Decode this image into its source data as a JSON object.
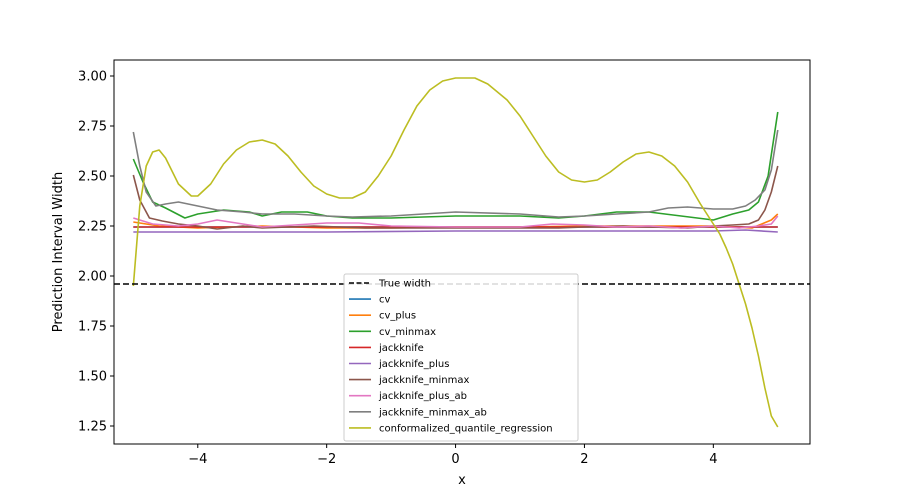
{
  "chart_data": {
    "type": "line",
    "xlabel": "x",
    "ylabel": "Prediction Interval Width",
    "xlim": [
      -5.3,
      5.5
    ],
    "ylim": [
      1.16,
      3.08
    ],
    "x_ticks": [
      -4,
      -2,
      0,
      2,
      4
    ],
    "x_tick_labels": [
      "−4",
      "−2",
      "0",
      "2",
      "4"
    ],
    "y_ticks": [
      1.25,
      1.5,
      1.75,
      2.0,
      2.25,
      2.5,
      2.75,
      3.0
    ],
    "y_tick_labels": [
      "1.25",
      "1.50",
      "1.75",
      "2.00",
      "2.25",
      "2.50",
      "2.75",
      "3.00"
    ],
    "legend_position": "lower-center",
    "reference_line": {
      "name": "True width",
      "y": 1.96,
      "color": "#000000",
      "style": "dashed"
    },
    "series": [
      {
        "name": "cv",
        "color": "#1f77b4",
        "x": [
          -5,
          5
        ],
        "y": [
          2.245,
          2.245
        ]
      },
      {
        "name": "cv_plus",
        "color": "#ff7f0e",
        "x": [
          -5,
          -4.6,
          -4,
          -3,
          -2,
          -1,
          0,
          1,
          2,
          3,
          4,
          4.6,
          4.9,
          5
        ],
        "y": [
          2.27,
          2.25,
          2.24,
          2.25,
          2.24,
          2.24,
          2.245,
          2.245,
          2.25,
          2.25,
          2.25,
          2.24,
          2.28,
          2.31
        ]
      },
      {
        "name": "cv_minmax",
        "color": "#2ca02c",
        "x": [
          -5,
          -4.85,
          -4.7,
          -4.5,
          -4.2,
          -4.0,
          -3.6,
          -3.2,
          -3.0,
          -2.7,
          -2.3,
          -2.0,
          -1.6,
          -1.0,
          0,
          1.0,
          1.6,
          2.0,
          2.5,
          3.0,
          3.5,
          4.0,
          4.3,
          4.55,
          4.7,
          4.85,
          5.0
        ],
        "y": [
          2.585,
          2.47,
          2.37,
          2.34,
          2.29,
          2.31,
          2.33,
          2.32,
          2.3,
          2.32,
          2.32,
          2.3,
          2.29,
          2.29,
          2.3,
          2.3,
          2.29,
          2.3,
          2.32,
          2.32,
          2.3,
          2.28,
          2.31,
          2.33,
          2.37,
          2.5,
          2.82
        ]
      },
      {
        "name": "jackknife",
        "color": "#d62728",
        "x": [
          -5,
          5
        ],
        "y": [
          2.245,
          2.245
        ]
      },
      {
        "name": "jackknife_plus",
        "color": "#9467bd",
        "x": [
          -5,
          -4,
          -2,
          0,
          2,
          4,
          4.5,
          5
        ],
        "y": [
          2.22,
          2.22,
          2.22,
          2.225,
          2.225,
          2.225,
          2.23,
          2.22
        ]
      },
      {
        "name": "jackknife_minmax",
        "color": "#8c564b",
        "x": [
          -5,
          -4.9,
          -4.75,
          -4.55,
          -4.3,
          -4.0,
          -3.7,
          -3.3,
          -3.0,
          -2.6,
          -2.2,
          -1.8,
          -1.4,
          -1.0,
          0,
          1.0,
          1.6,
          2.0,
          2.6,
          3.0,
          3.6,
          4.0,
          4.3,
          4.55,
          4.7,
          4.8,
          4.9,
          5.0
        ],
        "y": [
          2.505,
          2.38,
          2.29,
          2.275,
          2.26,
          2.25,
          2.235,
          2.25,
          2.24,
          2.245,
          2.25,
          2.245,
          2.24,
          2.24,
          2.24,
          2.24,
          2.24,
          2.245,
          2.25,
          2.245,
          2.24,
          2.25,
          2.255,
          2.26,
          2.28,
          2.33,
          2.42,
          2.55
        ]
      },
      {
        "name": "jackknife_plus_ab",
        "color": "#e377c2",
        "x": [
          -5,
          -4.7,
          -4.3,
          -4.0,
          -3.7,
          -3.3,
          -3.0,
          -2.5,
          -2.0,
          -1.5,
          -1.0,
          0,
          1.0,
          1.5,
          2.0,
          2.5,
          3.0,
          3.5,
          4.0,
          4.4,
          4.7,
          4.9,
          5.0
        ],
        "y": [
          2.29,
          2.26,
          2.25,
          2.26,
          2.28,
          2.26,
          2.245,
          2.255,
          2.265,
          2.265,
          2.25,
          2.245,
          2.245,
          2.26,
          2.255,
          2.245,
          2.25,
          2.24,
          2.25,
          2.24,
          2.25,
          2.26,
          2.3
        ]
      },
      {
        "name": "jackknife_minmax_ab",
        "color": "#7f7f7f",
        "x": [
          -5,
          -4.9,
          -4.8,
          -4.65,
          -4.5,
          -4.3,
          -4.0,
          -3.7,
          -3.3,
          -3.0,
          -2.5,
          -2.0,
          -1.6,
          -1.0,
          0,
          1.0,
          1.6,
          2.0,
          2.5,
          3.0,
          3.3,
          3.6,
          4.0,
          4.3,
          4.5,
          4.65,
          4.8,
          4.9,
          5.0
        ],
        "y": [
          2.72,
          2.55,
          2.42,
          2.35,
          2.36,
          2.37,
          2.35,
          2.33,
          2.32,
          2.31,
          2.31,
          2.3,
          2.295,
          2.3,
          2.32,
          2.31,
          2.295,
          2.3,
          2.31,
          2.32,
          2.34,
          2.345,
          2.335,
          2.335,
          2.35,
          2.38,
          2.43,
          2.53,
          2.73
        ]
      },
      {
        "name": "conformalized_quantile_regression",
        "color": "#bcbd22",
        "x": [
          -5.0,
          -4.9,
          -4.8,
          -4.7,
          -4.6,
          -4.5,
          -4.3,
          -4.1,
          -4.0,
          -3.8,
          -3.6,
          -3.4,
          -3.2,
          -3.0,
          -2.8,
          -2.6,
          -2.4,
          -2.2,
          -2.0,
          -1.8,
          -1.6,
          -1.4,
          -1.2,
          -1.0,
          -0.8,
          -0.6,
          -0.4,
          -0.2,
          0.0,
          0.2,
          0.3,
          0.5,
          0.8,
          1.0,
          1.2,
          1.4,
          1.6,
          1.8,
          2.0,
          2.2,
          2.4,
          2.6,
          2.8,
          3.0,
          3.2,
          3.4,
          3.6,
          3.8,
          4.0,
          4.1,
          4.2,
          4.3,
          4.4,
          4.5,
          4.6,
          4.7,
          4.8,
          4.9,
          5.0
        ],
        "y": [
          1.95,
          2.35,
          2.55,
          2.62,
          2.63,
          2.59,
          2.46,
          2.4,
          2.4,
          2.46,
          2.56,
          2.63,
          2.67,
          2.68,
          2.66,
          2.6,
          2.52,
          2.45,
          2.41,
          2.39,
          2.39,
          2.42,
          2.5,
          2.6,
          2.73,
          2.85,
          2.93,
          2.975,
          2.99,
          2.99,
          2.99,
          2.96,
          2.88,
          2.8,
          2.7,
          2.6,
          2.52,
          2.48,
          2.47,
          2.48,
          2.52,
          2.57,
          2.61,
          2.62,
          2.6,
          2.55,
          2.47,
          2.36,
          2.26,
          2.21,
          2.14,
          2.06,
          1.96,
          1.86,
          1.74,
          1.6,
          1.44,
          1.3,
          1.245
        ]
      }
    ]
  }
}
